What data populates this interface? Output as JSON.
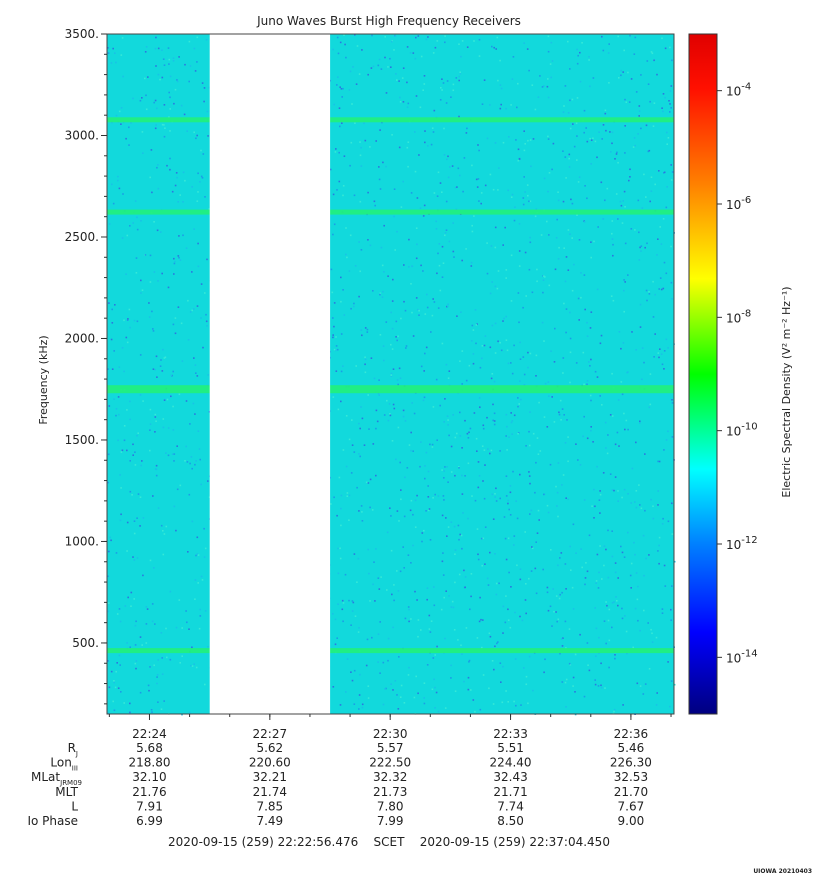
{
  "chart_data": {
    "type": "heatmap",
    "title": "Juno Waves Burst High Frequency Receivers",
    "ylabel": "Frequency (kHz)",
    "colorbar_label": "Electric Spectral Density (V² m⁻² Hz⁻¹)",
    "ylim": [
      150,
      3500
    ],
    "y_ticks": [
      500,
      1000,
      1500,
      2000,
      2500,
      3000,
      3500
    ],
    "y_tick_labels": [
      "500.",
      "1000.",
      "1500.",
      "2000.",
      "2500.",
      "3000.",
      "3500."
    ],
    "x_tick_labels": [
      "22:24",
      "22:27",
      "22:30",
      "22:33",
      "22:36"
    ],
    "colorbar_ticks": [
      {
        "exp": -4,
        "label": "-4"
      },
      {
        "exp": -6,
        "label": "-6"
      },
      {
        "exp": -8,
        "label": "-8"
      },
      {
        "exp": -10,
        "label": "-10"
      },
      {
        "exp": -12,
        "label": "-12"
      },
      {
        "exp": -14,
        "label": "-14"
      }
    ],
    "colorbar_range_exp": [
      -15,
      -3.0
    ],
    "emission_lines_khz": [
      460,
      1755,
      2620,
      3075
    ],
    "data_gap": [
      "22:25:30",
      "22:28:30"
    ],
    "time_range": [
      "22:22:56.476",
      "22:37:04.450"
    ],
    "ephemeris": [
      {
        "label": "R",
        "sub": "J",
        "values": [
          "5.68",
          "5.62",
          "5.57",
          "5.51",
          "5.46"
        ]
      },
      {
        "label": "Lon",
        "sub": "III",
        "values": [
          "218.80",
          "220.60",
          "222.50",
          "224.40",
          "226.30"
        ]
      },
      {
        "label": "MLat",
        "sub": "JRM09",
        "values": [
          "32.10",
          "32.21",
          "32.32",
          "32.43",
          "32.53"
        ]
      },
      {
        "label": "MLT",
        "sub": "",
        "values": [
          "21.76",
          "21.74",
          "21.73",
          "21.71",
          "21.70"
        ]
      },
      {
        "label": "L",
        "sub": "",
        "values": [
          "7.91",
          "7.85",
          "7.80",
          "7.74",
          "7.67"
        ]
      },
      {
        "label": "Io Phase",
        "sub": "",
        "values": [
          "6.99",
          "7.49",
          "7.99",
          "8.50",
          "9.00"
        ]
      }
    ],
    "time_span_text": "2020-09-15 (259) 22:22:56.476    SCET    2020-09-15 (259) 22:37:04.450",
    "colorbar_base": "10"
  },
  "footer_tag": "UIOWA 20210403"
}
